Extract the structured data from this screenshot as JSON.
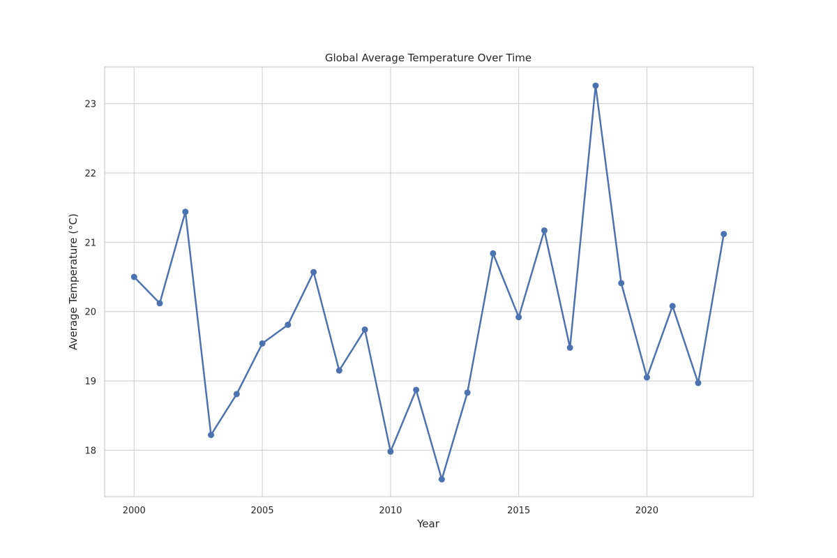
{
  "chart_data": {
    "type": "line",
    "title": "Global Average Temperature Over Time",
    "xlabel": "Year",
    "ylabel": "Average Temperature (°C)",
    "xlim": [
      1998.85,
      2024.15
    ],
    "ylim": [
      17.33,
      23.53
    ],
    "xticks": [
      2000,
      2005,
      2010,
      2015,
      2020
    ],
    "yticks": [
      18,
      19,
      20,
      21,
      22,
      23
    ],
    "grid": true,
    "line_color": "#4c72b0",
    "series": [
      {
        "x": [
          2000,
          2001,
          2002,
          2003,
          2004,
          2005,
          2006,
          2007,
          2008,
          2009,
          2010,
          2011,
          2012,
          2013,
          2014,
          2015,
          2016,
          2017,
          2018,
          2019,
          2020,
          2021,
          2022,
          2023
        ],
        "values": [
          20.5,
          20.12,
          21.44,
          18.22,
          18.81,
          19.54,
          19.81,
          20.57,
          19.15,
          19.74,
          17.98,
          18.87,
          17.58,
          18.83,
          20.84,
          19.92,
          21.17,
          19.48,
          23.26,
          20.41,
          19.05,
          20.08,
          18.97,
          21.12
        ]
      }
    ]
  }
}
